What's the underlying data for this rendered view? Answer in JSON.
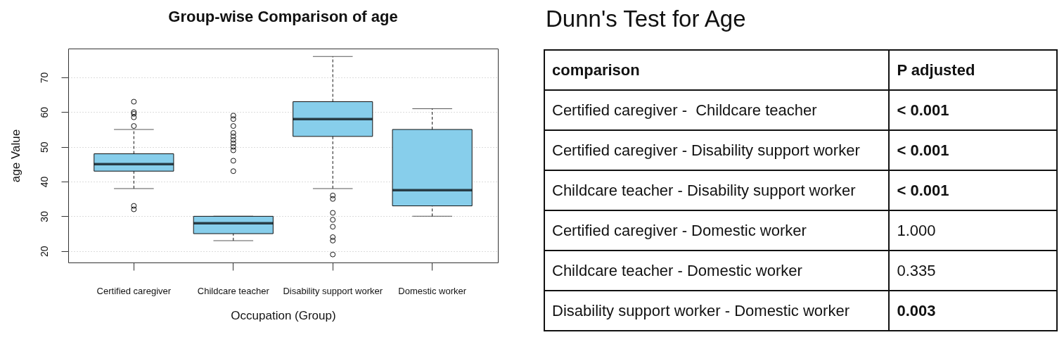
{
  "chart_data": [
    {
      "type": "box",
      "title": "Group-wise Comparison of age",
      "xlabel": "Occupation (Group)",
      "ylabel": "age Value",
      "categories": [
        "Certified caregiver",
        "Childcare teacher",
        "Disability support worker",
        "Domestic worker"
      ],
      "series": [
        {
          "color": "#87ceeb",
          "boxes": [
            {
              "low": 38,
              "q1": 43,
              "median": 45,
              "q3": 48,
              "high": 55,
              "outliers": [
                63,
                60,
                59.5,
                58.5,
                56,
                33,
                32
              ]
            },
            {
              "low": 23,
              "q1": 25,
              "median": 28,
              "q3": 30,
              "high": 30,
              "outliers": [
                59,
                58,
                56,
                54,
                53,
                52,
                51,
                50,
                49,
                46,
                43
              ]
            },
            {
              "low": 38,
              "q1": 53,
              "median": 58,
              "q3": 63,
              "high": 76,
              "outliers": [
                36,
                35,
                31,
                29,
                27,
                24,
                23,
                19
              ]
            },
            {
              "low": 30,
              "q1": 33,
              "median": 37.5,
              "q3": 55,
              "high": 61
            }
          ]
        }
      ],
      "ylim": [
        16.7,
        78.3
      ],
      "yticks": [
        20,
        30,
        40,
        50,
        60,
        70
      ],
      "grid": "y"
    },
    {
      "type": "other",
      "title": "Dunn's Test for Age",
      "annotations": [
        "comparison",
        "P adjusted",
        "Certified caregiver -  Childcare teacher",
        "< 0.001",
        "Certified caregiver - Disability support worker",
        "< 0.001",
        "Childcare teacher - Disability support worker",
        "< 0.001",
        "Certified caregiver - Domestic worker",
        "1.000",
        "Childcare teacher - Domestic worker",
        "0.335",
        "Disability support worker - Domestic worker",
        "0.003"
      ]
    }
  ]
}
